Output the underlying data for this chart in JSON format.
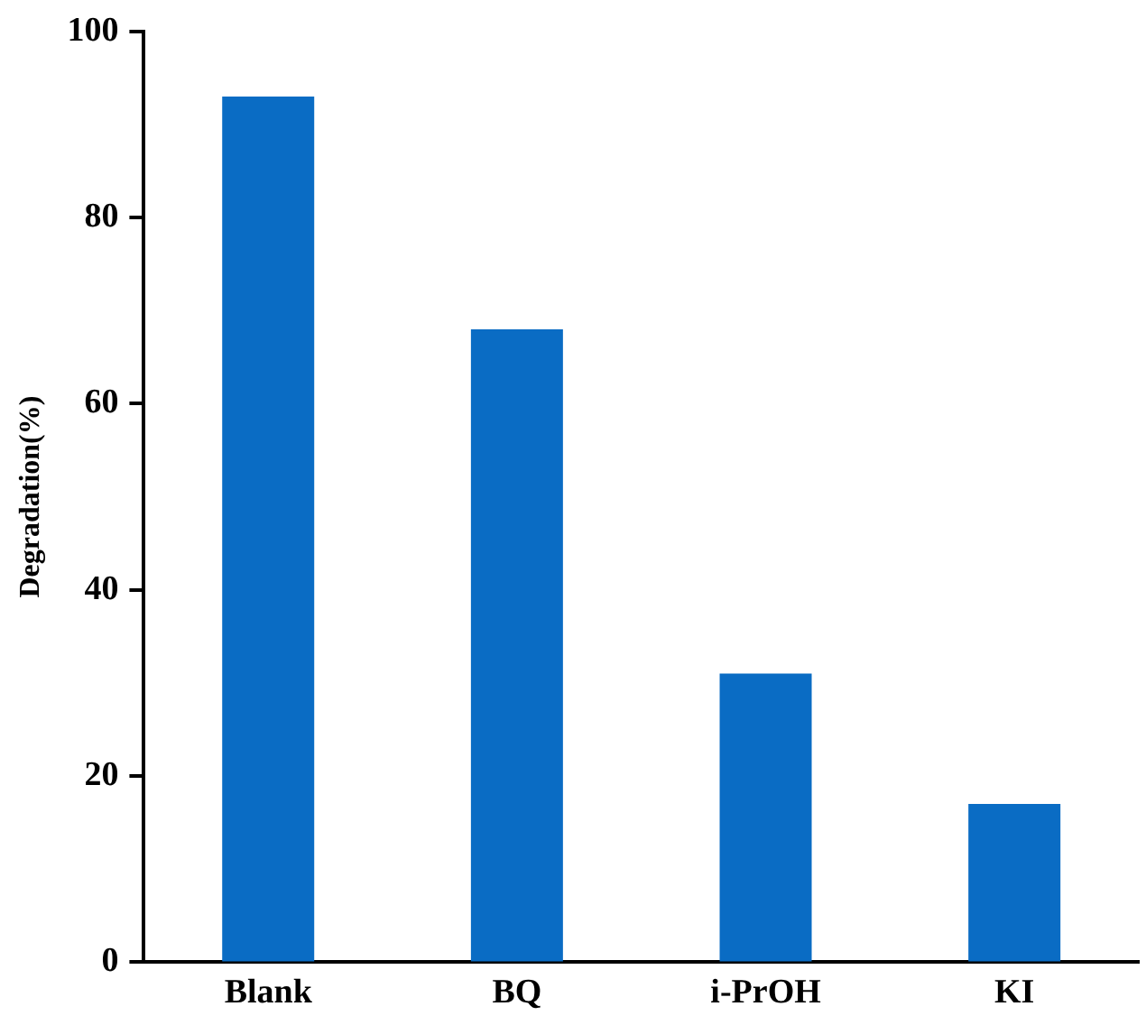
{
  "chart_data": {
    "type": "bar",
    "ylabel": "Degradation(%)",
    "categories": [
      "Blank",
      "BQ",
      "i-PrOH",
      "KI"
    ],
    "values": [
      93,
      68,
      31,
      17
    ],
    "color": "#0a6cc4",
    "ylim": [
      0,
      100
    ],
    "yticks": [
      0,
      20,
      40,
      60,
      80,
      100
    ],
    "grid": false,
    "legend": false
  }
}
